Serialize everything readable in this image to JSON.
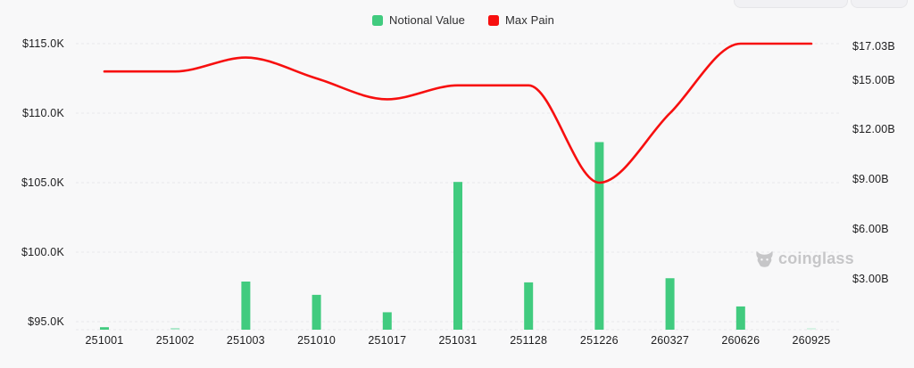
{
  "legend": {
    "items": [
      {
        "label": "Notional Value",
        "color": "#41cb7f"
      },
      {
        "label": "Max Pain",
        "color": "#f70f0f"
      }
    ]
  },
  "watermark": {
    "text": "coinglass"
  },
  "colors": {
    "background": "#f8f8f9",
    "gridline": "#e8e8ea",
    "bar_green": "#41cb7f",
    "bar_green_light": "#aee8cb",
    "bar_green_faint": "#d8f2e5",
    "line_red": "#f70f0f",
    "axis_text": "#1d1d1f",
    "watermark_gray": "#c6c6c8"
  },
  "chart_data": {
    "type": "bar+line",
    "title": "",
    "categories": [
      "251001",
      "251002",
      "251003",
      "251010",
      "251017",
      "251031",
      "251128",
      "251226",
      "260327",
      "260626",
      "260925"
    ],
    "series": [
      {
        "name": "Notional Value",
        "type": "bar",
        "axis": "right",
        "unit": "USD billions",
        "color": "#41cb7f",
        "values": [
          0.15,
          0.08,
          2.9,
          2.1,
          1.05,
          8.9,
          2.85,
          11.3,
          3.1,
          1.4,
          0.05
        ],
        "colors": [
          null,
          "#aee8cb",
          null,
          null,
          null,
          null,
          null,
          null,
          null,
          null,
          "#d8f2e5"
        ]
      },
      {
        "name": "Max Pain",
        "type": "line",
        "axis": "left",
        "unit": "USD thousands",
        "color": "#f70f0f",
        "values": [
          113.0,
          113.0,
          114.0,
          112.5,
          111.0,
          112.0,
          112.0,
          105.0,
          110.0,
          115.0,
          115.0
        ]
      }
    ],
    "left_axis": {
      "ticks": [
        {
          "label": "$115.0K",
          "value": 115
        },
        {
          "label": "$110.0K",
          "value": 110
        },
        {
          "label": "$105.0K",
          "value": 105
        },
        {
          "label": "$100.0K",
          "value": 100
        },
        {
          "label": "$95.0K",
          "value": 95
        }
      ],
      "range": [
        95,
        115
      ]
    },
    "right_axis": {
      "ticks": [
        {
          "label": "$17.03B",
          "value": 17.03
        },
        {
          "label": "$15.00B",
          "value": 15
        },
        {
          "label": "$12.00B",
          "value": 12
        },
        {
          "label": "$9.00B",
          "value": 9
        },
        {
          "label": "$6.00B",
          "value": 6
        },
        {
          "label": "$3.00B",
          "value": 3
        }
      ],
      "range": [
        0,
        17.03
      ]
    },
    "legend_position": "top-center",
    "grid": "horizontal-dashed"
  }
}
